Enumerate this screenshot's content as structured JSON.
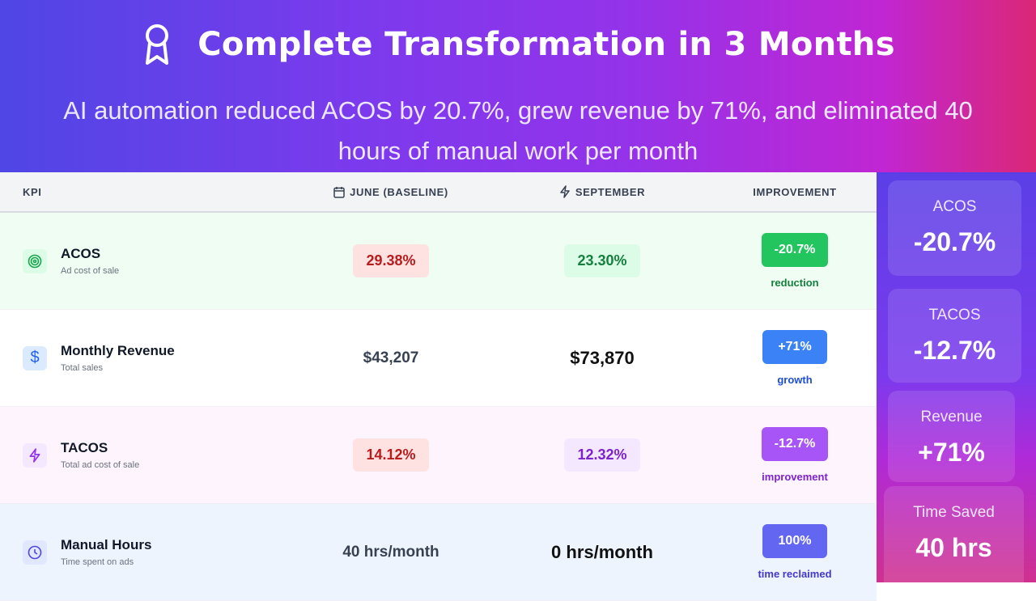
{
  "header": {
    "title": "Complete Transformation in 3 Months",
    "subtitle": "AI automation reduced ACOS by 20.7%, grew revenue by 71%, and eliminated 40 hours of manual work per month",
    "icon": "award-ribbon-icon"
  },
  "table": {
    "columns": {
      "kpi": "KPI",
      "june": "JUNE (BASELINE)",
      "september": "SEPTEMBER",
      "improvement": "IMPROVEMENT"
    },
    "rows": [
      {
        "name": "ACOS",
        "sub": "Ad cost of sale",
        "icon": "target-icon",
        "june": "29.38%",
        "september": "23.30%",
        "badge": "-20.7%",
        "label": "reduction",
        "badge_color": "#22c55e"
      },
      {
        "name": "Monthly Revenue",
        "sub": "Total sales",
        "icon": "dollar-icon",
        "june": "$43,207",
        "september": "$73,870",
        "badge": "+71%",
        "label": "growth",
        "badge_color": "#3b82f6"
      },
      {
        "name": "TACOS",
        "sub": "Total ad cost of sale",
        "icon": "lightning-icon",
        "june": "14.12%",
        "september": "12.32%",
        "badge": "-12.7%",
        "label": "improvement",
        "badge_color": "#a855f7"
      },
      {
        "name": "Manual Hours",
        "sub": "Time spent on ads",
        "icon": "clock-icon",
        "june": "40 hrs/month",
        "september": "0 hrs/month",
        "badge": "100%",
        "label": "time reclaimed",
        "badge_color": "#6366f1"
      }
    ]
  },
  "summary": [
    {
      "label": "ACOS",
      "value": "-20.7%"
    },
    {
      "label": "TACOS",
      "value": "-12.7%"
    },
    {
      "label": "Revenue",
      "value": "+71%"
    },
    {
      "label": "Time Saved",
      "value": "40 hrs"
    }
  ]
}
